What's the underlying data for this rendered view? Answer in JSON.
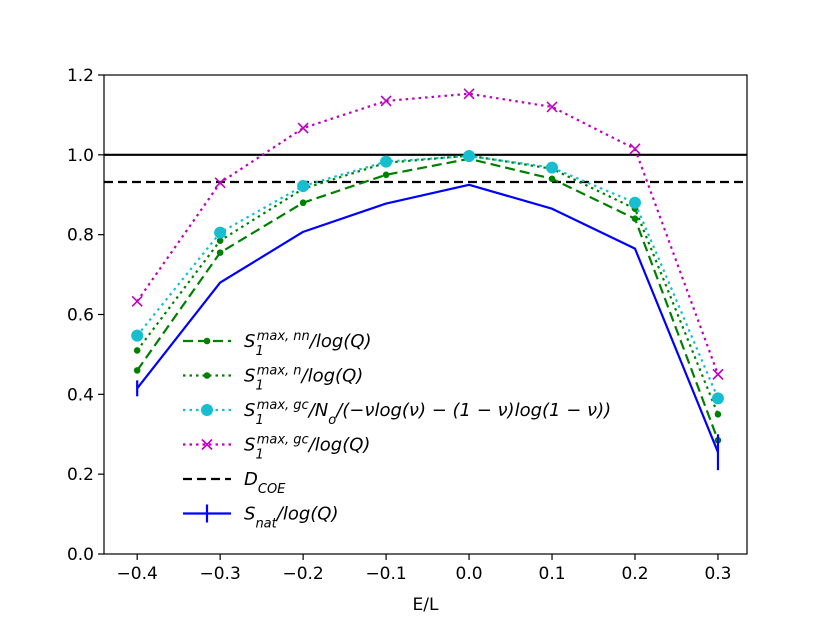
{
  "chart_data": {
    "type": "line",
    "title": "",
    "xlabel": "E/L",
    "ylabel": "",
    "xlim": [
      -0.44,
      0.335
    ],
    "ylim": [
      0.0,
      1.2
    ],
    "x": [
      -0.4,
      -0.3,
      -0.2,
      -0.1,
      0.0,
      0.1,
      0.2,
      0.3
    ],
    "xticks": [
      -0.4,
      -0.3,
      -0.2,
      -0.1,
      0.0,
      0.1,
      0.2,
      0.3
    ],
    "xtick_labels": [
      "−0.4",
      "−0.3",
      "−0.2",
      "−0.1",
      "0.0",
      "0.1",
      "0.2",
      "0.3"
    ],
    "yticks": [
      0.0,
      0.2,
      0.4,
      0.6,
      0.8,
      1.0,
      1.2
    ],
    "ytick_labels": [
      "0.0",
      "0.2",
      "0.4",
      "0.6",
      "0.8",
      "1.0",
      "1.2"
    ],
    "grid": false,
    "legend_position": "lower-left",
    "series": [
      {
        "id": "nn",
        "name": "S1^{max,nn}/log(Q)",
        "legend_main": "S",
        "legend_sub": "1",
        "legend_sup": "max, nn",
        "legend_rest": "/log(Q)",
        "color": "#008000",
        "style": "dashed",
        "marker": "dot",
        "values": [
          0.46,
          0.755,
          0.88,
          0.95,
          0.99,
          0.94,
          0.84,
          0.285
        ]
      },
      {
        "id": "n",
        "name": "S1^{max,n}/log(Q)",
        "legend_main": "S",
        "legend_sub": "1",
        "legend_sup": "max, n",
        "legend_rest": "/log(Q)",
        "color": "#008000",
        "style": "dotted",
        "marker": "dot",
        "values": [
          0.51,
          0.785,
          0.915,
          0.98,
          0.998,
          0.965,
          0.865,
          0.35
        ]
      },
      {
        "id": "gc_entropy",
        "name": "S1^{max,gc}/No/(−νlog(ν) − (1 − ν)log(1 − ν))",
        "legend_main": "S",
        "legend_sub": "1",
        "legend_sup": "max, gc",
        "legend_rest": "/N",
        "legend_sub2": "o",
        "legend_rest2": "/(−νlog(ν) − (1 − ν)log(1 − ν))",
        "color": "#17becf",
        "style": "dotted",
        "marker": "circle",
        "values": [
          0.547,
          0.805,
          0.922,
          0.983,
          0.997,
          0.968,
          0.88,
          0.39
        ]
      },
      {
        "id": "gc_log",
        "name": "S1^{max,gc}/log(Q)",
        "legend_main": "S",
        "legend_sub": "1",
        "legend_sup": "max, gc",
        "legend_rest": "/log(Q)",
        "color": "#bf00bf",
        "style": "dotted",
        "marker": "x",
        "values": [
          0.633,
          0.93,
          1.067,
          1.135,
          1.153,
          1.12,
          1.015,
          0.45
        ]
      },
      {
        "id": "snat",
        "name": "Snat/log(Q)",
        "legend_main": "S",
        "legend_sub": "nat",
        "legend_rest": "/log(Q)",
        "color": "#0000ff",
        "style": "solid",
        "marker": "errorbar",
        "values": [
          0.415,
          0.68,
          0.807,
          0.878,
          0.925,
          0.865,
          0.765,
          0.255
        ],
        "errors": [
          0.02,
          0.0,
          0.0,
          0.0,
          0.0,
          0.0,
          0.0,
          0.045
        ]
      }
    ],
    "hlines": [
      {
        "id": "one",
        "y": 1.0,
        "color": "#000000",
        "style": "solid",
        "label": ""
      },
      {
        "id": "dcoe",
        "y": 0.932,
        "color": "#000000",
        "style": "dashed",
        "label": "D_COE",
        "legend_main": "D",
        "legend_sub": "COE"
      }
    ]
  }
}
